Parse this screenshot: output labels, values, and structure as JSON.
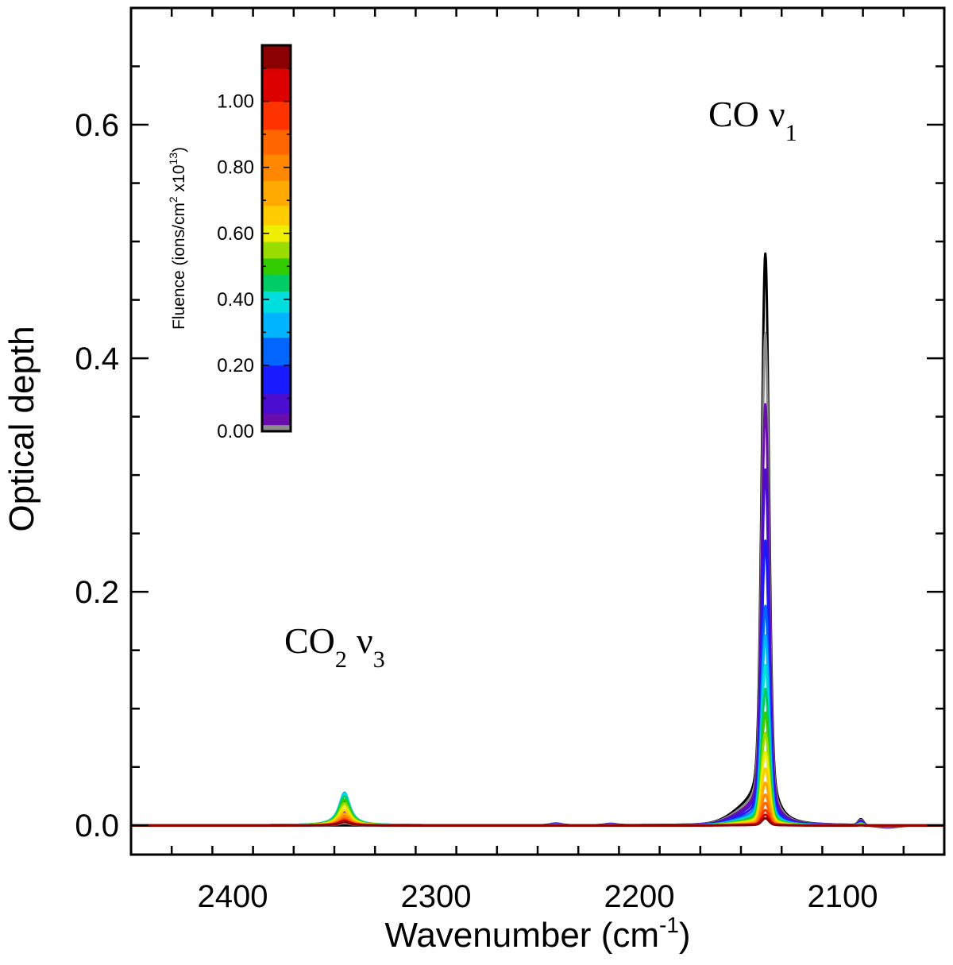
{
  "chart_data": {
    "type": "line",
    "xlabel": "Wavenumber (cm",
    "xlabel_sup": "-1",
    "xlabel_end": ")",
    "ylabel": "Optical depth",
    "xlim": [
      2450,
      2050
    ],
    "ylim": [
      -0.025,
      0.7
    ],
    "x_ticks": [
      2400,
      2300,
      2200,
      2100
    ],
    "x_tick_labels": [
      "2400",
      "2300",
      "2200",
      "2100"
    ],
    "y_ticks": [
      0.0,
      0.2,
      0.4,
      0.6
    ],
    "y_tick_labels": [
      "0.0",
      "0.2",
      "0.4",
      "0.6"
    ],
    "annotations": [
      {
        "base": "CO",
        "sub1": "",
        "nu": "ν",
        "sub2": "1",
        "x": 2129,
        "y": 0.595
      },
      {
        "base": "CO",
        "sub1": "2",
        "nu": "ν",
        "sub2": "3",
        "x": 2333,
        "y": 0.15
      }
    ],
    "colorbar": {
      "title": "Fluence (ions/cm",
      "title_sup1": "2",
      "title_mid": " x10",
      "title_sup2": "13",
      "title_end": ")",
      "range": [
        0,
        1.17
      ],
      "tick_values": [
        0.0,
        0.2,
        0.4,
        0.6,
        0.8,
        1.0
      ],
      "tick_labels": [
        "0.00",
        "0.20",
        "0.40",
        "0.60",
        "0.80",
        "1.00"
      ]
    },
    "features": {
      "co_peak_center": 2138,
      "co2_peak_center": 2345,
      "small_peak_centers": [
        2241,
        2214,
        2091
      ]
    },
    "series": [
      {
        "fluence": 0.0,
        "color": "#000000",
        "co_peak": 0.482,
        "co2_peak": 0.0
      },
      {
        "fluence": 0.01,
        "color": "#8c8c8c",
        "co_peak": 0.415,
        "co2_peak": 0.002
      },
      {
        "fluence": 0.03,
        "color": "#6a0dad",
        "co_peak": 0.355,
        "co2_peak": 0.006
      },
      {
        "fluence": 0.08,
        "color": "#4b0dd0",
        "co_peak": 0.3,
        "co2_peak": 0.012
      },
      {
        "fluence": 0.15,
        "color": "#1a1aff",
        "co_peak": 0.24,
        "co2_peak": 0.02
      },
      {
        "fluence": 0.25,
        "color": "#0066ff",
        "co_peak": 0.185,
        "co2_peak": 0.027
      },
      {
        "fluence": 0.32,
        "color": "#00b4ff",
        "co_peak": 0.16,
        "co2_peak": 0.028
      },
      {
        "fluence": 0.4,
        "color": "#00dddd",
        "co_peak": 0.135,
        "co2_peak": 0.027
      },
      {
        "fluence": 0.45,
        "color": "#00cc66",
        "co_peak": 0.115,
        "co2_peak": 0.025
      },
      {
        "fluence": 0.5,
        "color": "#33cc00",
        "co_peak": 0.095,
        "co2_peak": 0.022
      },
      {
        "fluence": 0.55,
        "color": "#99dd00",
        "co_peak": 0.078,
        "co2_peak": 0.019
      },
      {
        "fluence": 0.6,
        "color": "#eeee00",
        "co_peak": 0.062,
        "co2_peak": 0.016
      },
      {
        "fluence": 0.65,
        "color": "#ffcc00",
        "co_peak": 0.048,
        "co2_peak": 0.013
      },
      {
        "fluence": 0.72,
        "color": "#ffaa00",
        "co_peak": 0.036,
        "co2_peak": 0.01
      },
      {
        "fluence": 0.8,
        "color": "#ff8800",
        "co_peak": 0.026,
        "co2_peak": 0.008
      },
      {
        "fluence": 0.88,
        "color": "#ff6600",
        "co_peak": 0.019,
        "co2_peak": 0.006
      },
      {
        "fluence": 0.95,
        "color": "#ff3300",
        "co_peak": 0.013,
        "co2_peak": 0.005
      },
      {
        "fluence": 1.05,
        "color": "#dd0000",
        "co_peak": 0.009,
        "co2_peak": 0.004
      },
      {
        "fluence": 1.15,
        "color": "#8b0000",
        "co_peak": 0.006,
        "co2_peak": 0.003
      }
    ]
  }
}
